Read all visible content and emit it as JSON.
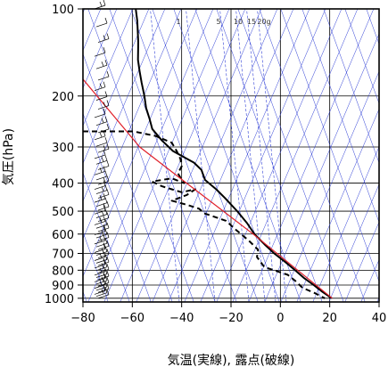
{
  "chart_data": {
    "type": "line",
    "title": "",
    "xlabel": "気温(実線), 露点(破線)",
    "ylabel": "気圧(hPa)",
    "xlim": [
      -80,
      40
    ],
    "ylim": [
      1030,
      100
    ],
    "y_scale": "log",
    "grid": true,
    "x_ticks": [
      -80,
      -60,
      -40,
      -20,
      0,
      20,
      40
    ],
    "x_tick_labels": [
      "−80",
      "−60",
      "−40",
      "−20",
      "0",
      "20",
      "40"
    ],
    "y_ticks": [
      100,
      200,
      300,
      400,
      500,
      600,
      700,
      800,
      900,
      1000
    ],
    "y_tick_labels": [
      "100",
      "200",
      "300",
      "400",
      "500",
      "600",
      "700",
      "800",
      "900",
      "1000"
    ],
    "mixing_ratio_labels": [
      "1",
      "5",
      "10",
      "15",
      "20g"
    ],
    "colors": {
      "temperature": "#000000",
      "dewpoint": "#000000",
      "parcel": "#e0202a",
      "isopleth": "#2f3fd6",
      "grid": "#000000"
    },
    "series": [
      {
        "style": "solid",
        "points": [
          [
            100,
            -58.6
          ],
          [
            110,
            -58.0
          ],
          [
            130,
            -57.6
          ],
          [
            150,
            -57.7
          ],
          [
            165,
            -57.0
          ],
          [
            180,
            -56.2
          ],
          [
            200,
            -55.1
          ],
          [
            220,
            -54.4
          ],
          [
            240,
            -53.0
          ],
          [
            260,
            -51.9
          ],
          [
            285,
            -48.0
          ],
          [
            310,
            -43.5
          ],
          [
            340,
            -35.0
          ],
          [
            360,
            -32.0
          ],
          [
            390,
            -30.5
          ],
          [
            420,
            -26.0
          ],
          [
            450,
            -22.5
          ],
          [
            500,
            -17.5
          ],
          [
            550,
            -13.5
          ],
          [
            600,
            -10.5
          ],
          [
            650,
            -6.5
          ],
          [
            700,
            -2.5
          ],
          [
            750,
            2.0
          ],
          [
            800,
            6.0
          ],
          [
            850,
            9.5
          ],
          [
            900,
            13.5
          ],
          [
            950,
            17.0
          ],
          [
            1000,
            20.8
          ]
        ]
      },
      {
        "style": "dashed",
        "points": [
          [
            265,
            -80.0
          ],
          [
            265,
            -59.5
          ],
          [
            275,
            -50.5
          ],
          [
            290,
            -44.0
          ],
          [
            310,
            -42.0
          ],
          [
            330,
            -40.5
          ],
          [
            350,
            -40.0
          ],
          [
            370,
            -41.5
          ],
          [
            390,
            -40.0
          ],
          [
            400,
            -39.0
          ],
          [
            385,
            -44.0
          ],
          [
            395,
            -52.0
          ],
          [
            410,
            -48.0
          ],
          [
            420,
            -44.0
          ],
          [
            430,
            -40.0
          ],
          [
            420,
            -34.5
          ],
          [
            440,
            -38.0
          ],
          [
            460,
            -44.0
          ],
          [
            475,
            -38.0
          ],
          [
            490,
            -33.0
          ],
          [
            510,
            -30.5
          ],
          [
            540,
            -22.0
          ],
          [
            580,
            -18.0
          ],
          [
            630,
            -13.0
          ],
          [
            680,
            -9.0
          ],
          [
            720,
            -9.5
          ],
          [
            780,
            -6.5
          ],
          [
            830,
            3.0
          ],
          [
            870,
            6.0
          ],
          [
            920,
            9.0
          ],
          [
            960,
            14.0
          ],
          [
            1000,
            18.0
          ]
        ]
      },
      {
        "style": "solid-red",
        "points": [
          [
            1000,
            21.0
          ],
          [
            600,
            -11.0
          ],
          [
            400,
            -38.0
          ],
          [
            300,
            -57.0
          ],
          [
            175,
            -80.0
          ]
        ]
      }
    ],
    "wind_barbs_count": 60
  }
}
